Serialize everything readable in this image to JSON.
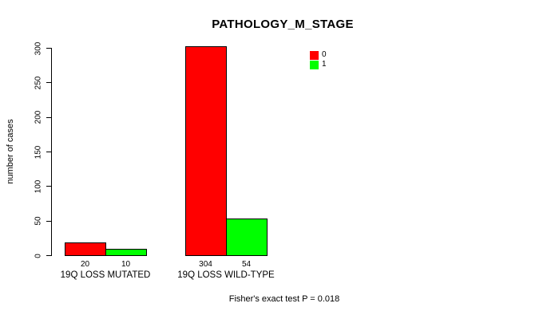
{
  "title": "PATHOLOGY_M_STAGE",
  "footer": "Fisher's exact test P = 0.018",
  "colors": {
    "series0": "#ff0000",
    "series1": "#00ff00",
    "axis": "#000000",
    "background": "#ffffff"
  },
  "legend": {
    "items": [
      {
        "label": "0",
        "color": "#ff0000"
      },
      {
        "label": "1",
        "color": "#00ff00"
      }
    ]
  },
  "chart_data": {
    "type": "bar",
    "title": "PATHOLOGY_M_STAGE",
    "xlabel": "",
    "ylabel": "number of cases",
    "ylim": [
      0,
      300
    ],
    "yticks": [
      0,
      50,
      100,
      150,
      200,
      250,
      300
    ],
    "categories": [
      "19Q LOSS MUTATED",
      "19Q LOSS WILD-TYPE"
    ],
    "series": [
      {
        "name": "0",
        "color": "#ff0000",
        "values": [
          20,
          304
        ]
      },
      {
        "name": "1",
        "color": "#00ff00",
        "values": [
          10,
          54
        ]
      }
    ],
    "bar_value_labels": [
      [
        20,
        10
      ],
      [
        304,
        54
      ]
    ],
    "grid": false,
    "legend_position": "top-right",
    "annotation": "Fisher's exact test P = 0.018"
  }
}
